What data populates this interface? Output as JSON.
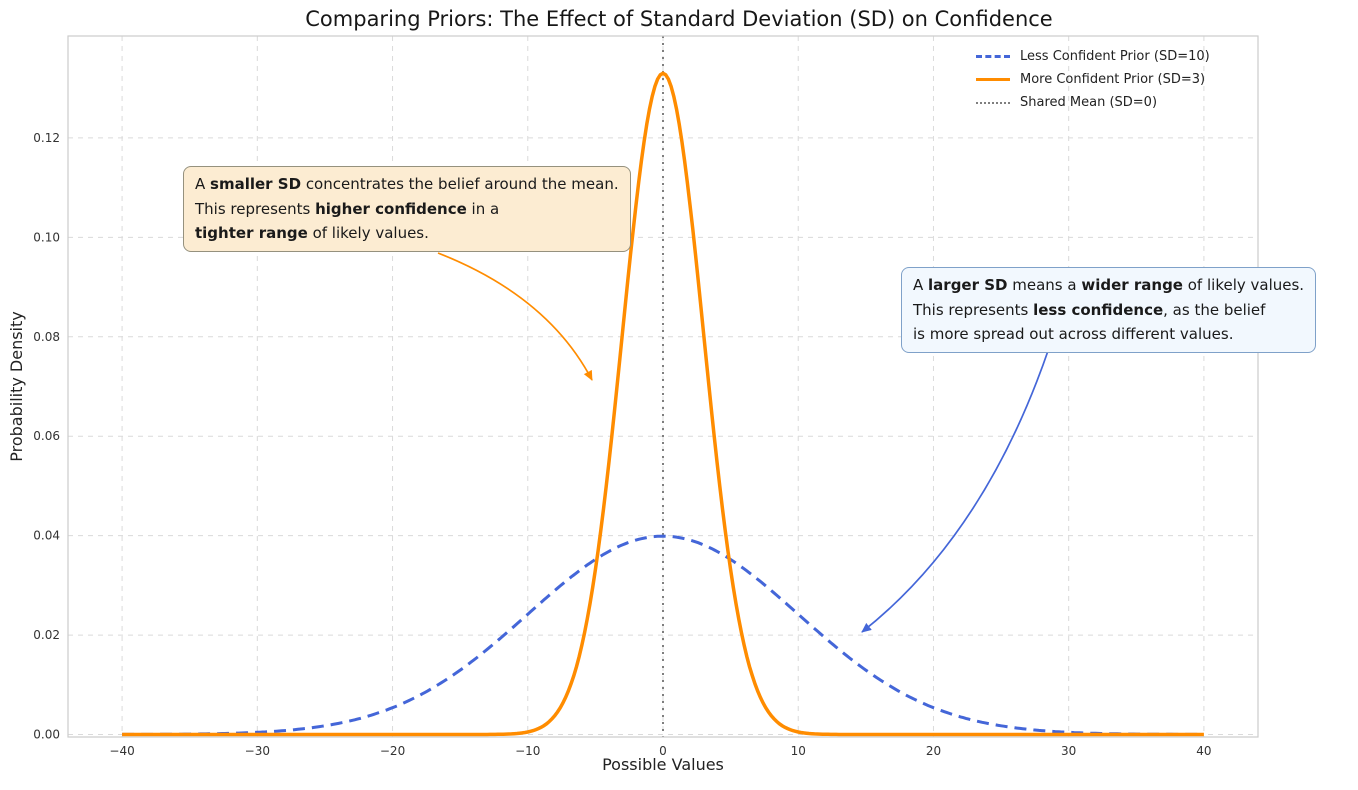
{
  "page": {
    "background": "#ffffff"
  },
  "chart_data": {
    "type": "line",
    "title": "Comparing Priors: The Effect of Standard Deviation (SD) on Confidence",
    "xlabel": "Possible Values",
    "ylabel": "Probability Density",
    "xlim": [
      -44,
      44
    ],
    "ylim": [
      -0.0005,
      0.1405
    ],
    "xticks": [
      -40,
      -30,
      -20,
      -10,
      0,
      10,
      20,
      30,
      40
    ],
    "yticks": [
      0.0,
      0.02,
      0.04,
      0.06,
      0.08,
      0.1,
      0.12
    ],
    "grid": true,
    "legend_position": "upper right",
    "series": [
      {
        "name": "Less Confident Prior (SD=10)",
        "distribution": "normal",
        "mean": 0,
        "sd": 10,
        "peak_density": 0.0399,
        "x_range": [
          -40,
          40
        ],
        "color": "#4466d8",
        "line_style": "dashed",
        "line_width": 3
      },
      {
        "name": "More Confident Prior (SD=3)",
        "distribution": "normal",
        "mean": 0,
        "sd": 3,
        "peak_density": 0.133,
        "x_range": [
          -40,
          40
        ],
        "color": "#ff8c00",
        "line_style": "solid",
        "line_width": 3.5
      }
    ],
    "vline": {
      "name": "Shared Mean (SD=0)",
      "x": 0,
      "color": "#7f7f7f",
      "line_style": "dotted",
      "line_width": 2
    }
  },
  "annotations": [
    {
      "id": "smaller-sd",
      "arrow": {
        "color": "#ff8c00"
      },
      "lines": [
        [
          {
            "t": "A "
          },
          {
            "t": "smaller SD",
            "b": true
          },
          {
            "t": " concentrates the belief around the mean."
          }
        ],
        [
          {
            "t": "This represents "
          },
          {
            "t": "higher confidence",
            "b": true
          },
          {
            "t": " in a"
          }
        ],
        [
          {
            "t": "tighter range",
            "b": true
          },
          {
            "t": " of likely values."
          }
        ]
      ]
    },
    {
      "id": "larger-sd",
      "arrow": {
        "color": "#4466d8"
      },
      "lines": [
        [
          {
            "t": "A "
          },
          {
            "t": "larger SD",
            "b": true
          },
          {
            "t": " means a "
          },
          {
            "t": "wider range",
            "b": true
          },
          {
            "t": " of likely values."
          }
        ],
        [
          {
            "t": "This represents "
          },
          {
            "t": "less confidence",
            "b": true
          },
          {
            "t": ", as the belief"
          }
        ],
        [
          {
            "t": "is more spread out across different values."
          }
        ]
      ]
    }
  ]
}
